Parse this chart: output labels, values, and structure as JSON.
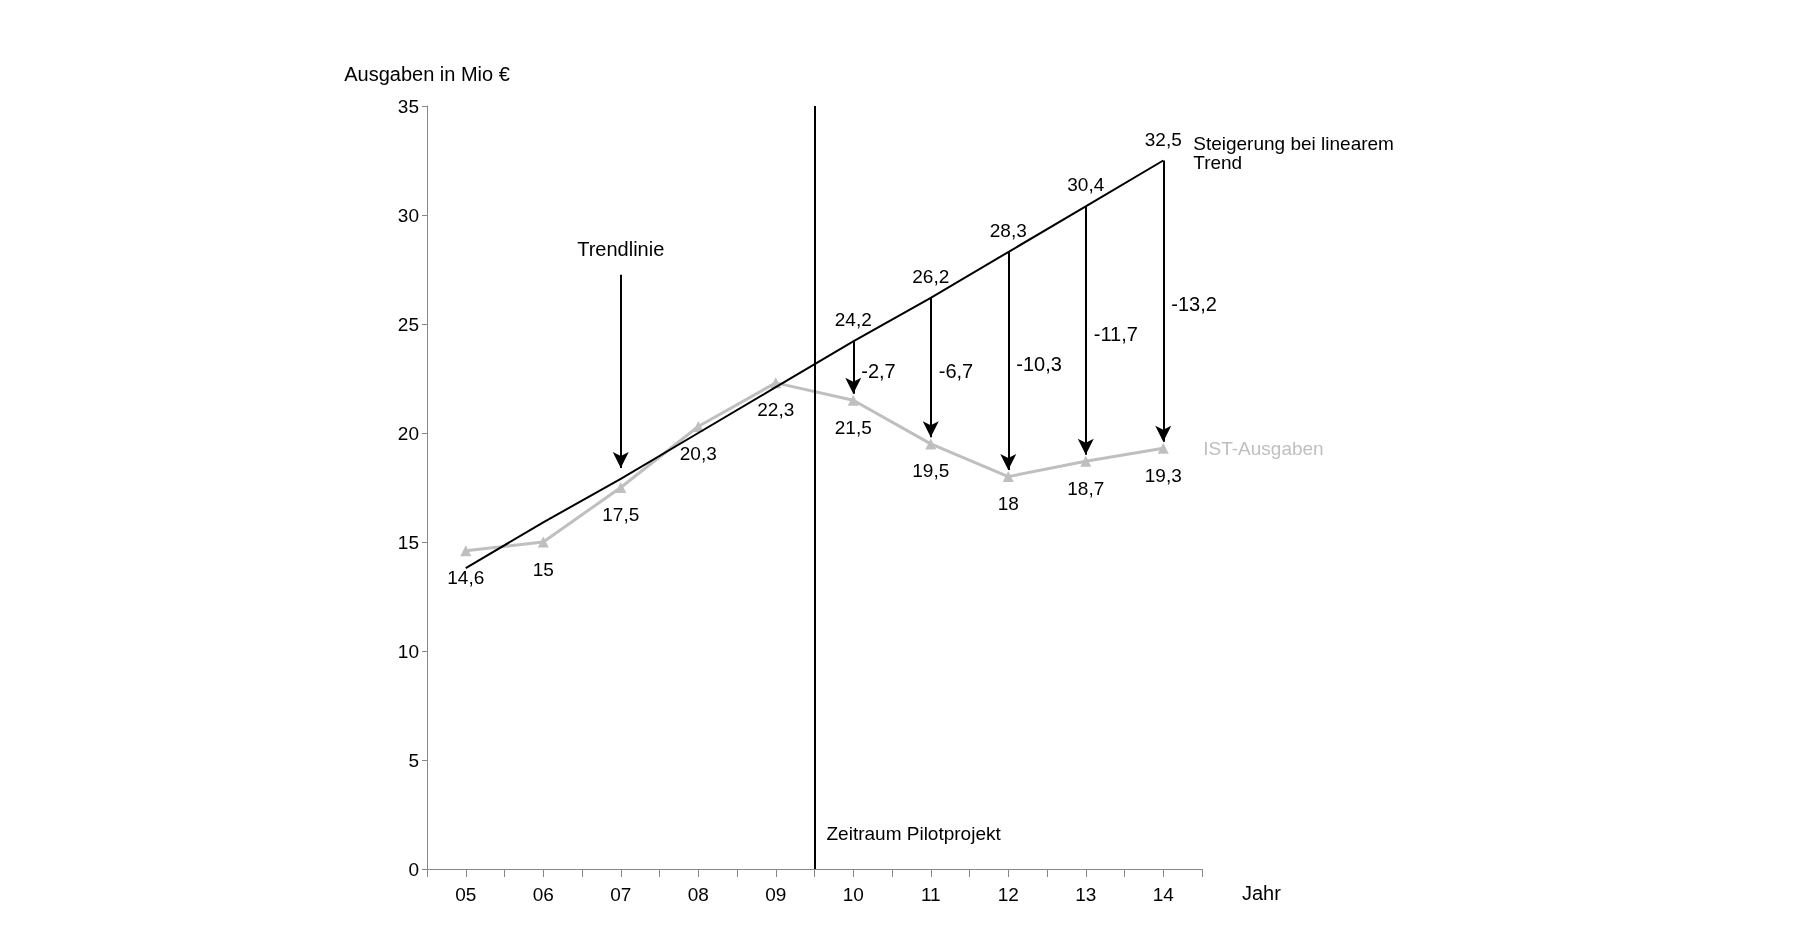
{
  "chart_data": {
    "type": "line",
    "xlabel": "Jahr",
    "ylabel": "Ausgaben in Mio €",
    "x": [
      5,
      6,
      7,
      8,
      9,
      10,
      11,
      12,
      13,
      14
    ],
    "xlim": [
      4.5,
      14.5
    ],
    "xticks": [
      {
        "value": 4.5,
        "label": null
      },
      {
        "value": 5,
        "label": "05"
      },
      {
        "value": 5.5,
        "label": null
      },
      {
        "value": 6,
        "label": "06"
      },
      {
        "value": 6.5,
        "label": null
      },
      {
        "value": 7,
        "label": "07"
      },
      {
        "value": 7.5,
        "label": null
      },
      {
        "value": 8,
        "label": "08"
      },
      {
        "value": 8.5,
        "label": null
      },
      {
        "value": 9,
        "label": "09"
      },
      {
        "value": 9.5,
        "label": null
      },
      {
        "value": 10,
        "label": "10"
      },
      {
        "value": 10.5,
        "label": null
      },
      {
        "value": 11,
        "label": "11"
      },
      {
        "value": 11.5,
        "label": null
      },
      {
        "value": 12,
        "label": "12"
      },
      {
        "value": 12.5,
        "label": null
      },
      {
        "value": 13,
        "label": "13"
      },
      {
        "value": 13.5,
        "label": null
      },
      {
        "value": 14,
        "label": "14"
      },
      {
        "value": 14.5,
        "label": null
      }
    ],
    "ylim": [
      0,
      35
    ],
    "yticks": [
      0,
      5,
      10,
      15,
      20,
      25,
      30,
      35
    ],
    "grid": false,
    "legend": false,
    "series": [
      {
        "name": "IST-Ausgaben",
        "color": "#bfbfbf",
        "marker": "triangle",
        "values": [
          14.6,
          15,
          17.5,
          20.3,
          22.3,
          21.5,
          19.5,
          18,
          18.7,
          19.3
        ],
        "value_labels": [
          "14,6",
          "15",
          "17,5",
          "20,3",
          "22,3",
          "21,5",
          "19,5",
          "18",
          "18,7",
          "19,3"
        ]
      },
      {
        "name": "Steigerung bei linearem Trend",
        "color": "#000000",
        "marker": "none",
        "values": [
          13.8,
          15.9,
          17.9,
          20.0,
          22.1,
          24.2,
          26.2,
          28.3,
          30.4,
          32.5
        ],
        "value_labels": [
          null,
          null,
          null,
          null,
          null,
          "24,2",
          "26,2",
          "28,3",
          "30,4",
          "32,5"
        ]
      }
    ],
    "ref_lines": [
      {
        "axis": "x",
        "value": 9.5,
        "label": "Zeitraum Pilotprojekt"
      }
    ],
    "annotations": [
      "Trendlinie",
      "-2,7",
      "-6,7",
      "-10,3",
      "-11,7",
      "-13,2"
    ]
  }
}
